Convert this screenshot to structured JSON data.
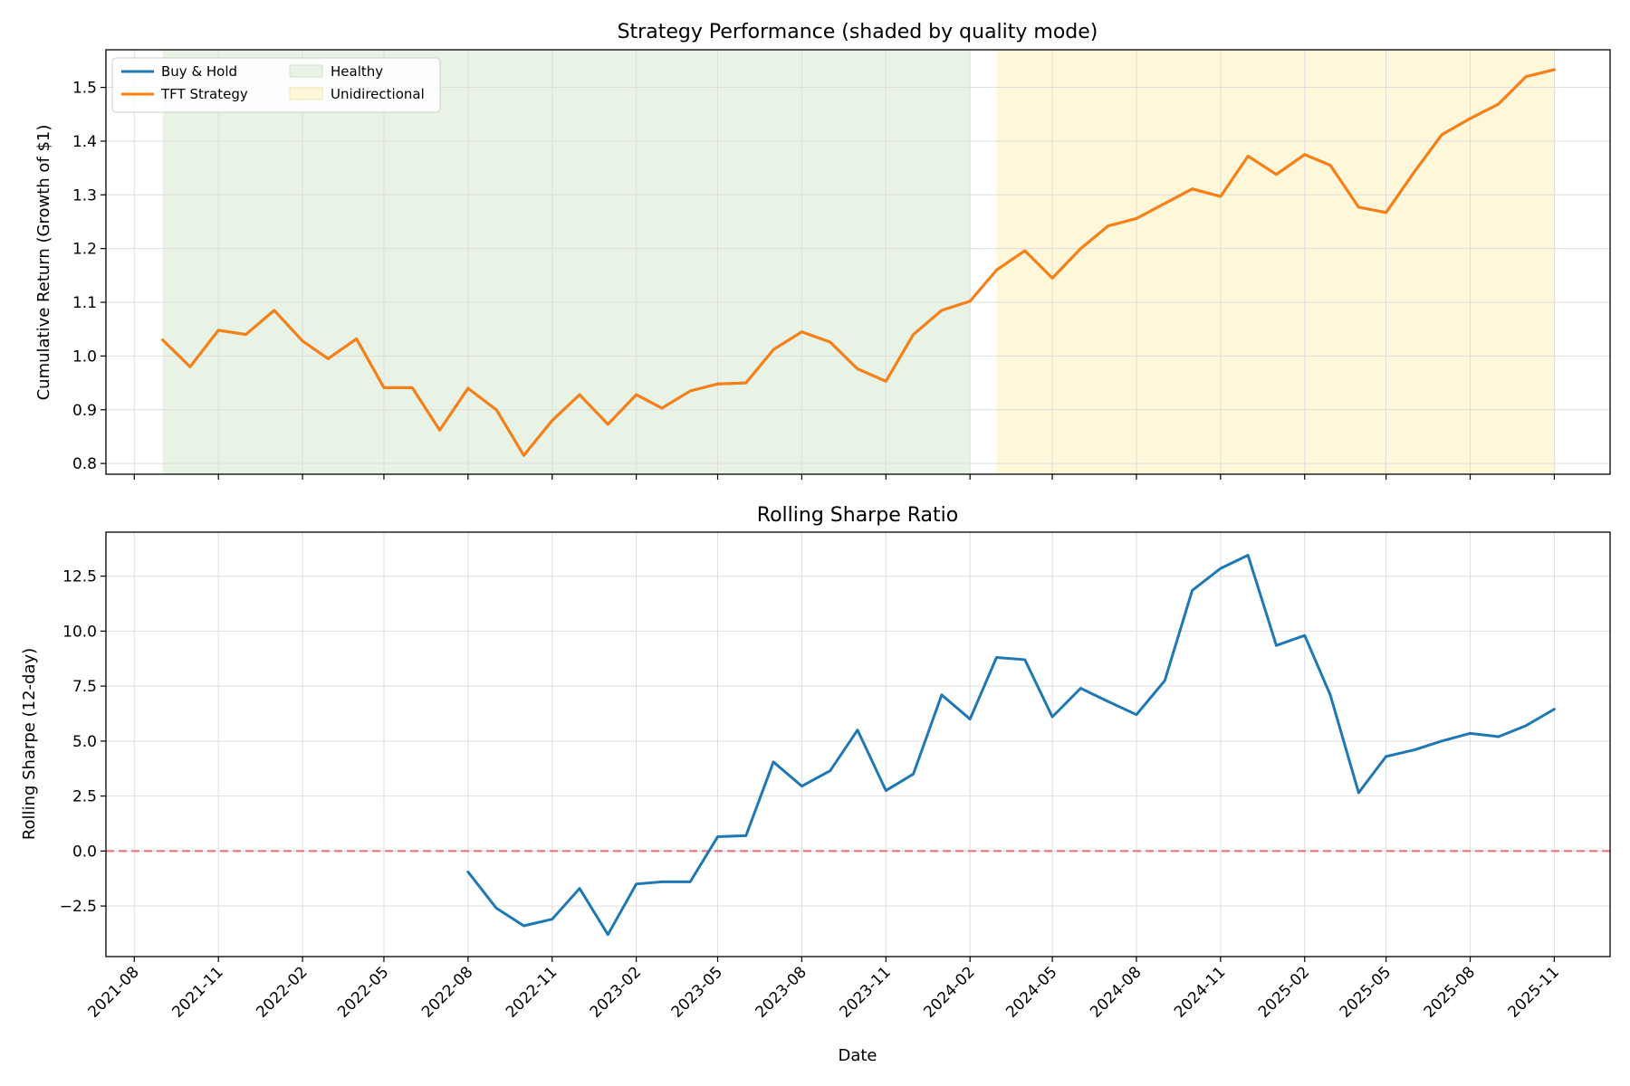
{
  "colors": {
    "buy_hold": "#1f77b4",
    "tft": "#ff7f0e",
    "healthy": "#e8f3e6",
    "unidirectional": "#fff7d9",
    "zero_line": "#f06b6b",
    "grid": "#dddddd"
  },
  "chart_data": [
    {
      "type": "line",
      "title": "Strategy Performance (shaded by quality mode)",
      "xlabel": "",
      "ylabel": "Cumulative Return (Growth of $1)",
      "grid": true,
      "legend_position": "top-left",
      "legend": [
        {
          "label": "Buy & Hold",
          "kind": "line",
          "color": "#1f77b4"
        },
        {
          "label": "TFT Strategy",
          "kind": "line",
          "color": "#ff7f0e"
        },
        {
          "label": "Healthy",
          "kind": "patch",
          "color": "#e8f3e6"
        },
        {
          "label": "Unidirectional",
          "kind": "patch",
          "color": "#fff7d9"
        }
      ],
      "xlim": [
        "2021-07-01",
        "2026-01-01"
      ],
      "ylim": [
        0.78,
        1.57
      ],
      "x_ticks": [
        "2021-08",
        "2021-11",
        "2022-02",
        "2022-05",
        "2022-08",
        "2022-11",
        "2023-02",
        "2023-05",
        "2023-08",
        "2023-11",
        "2024-02",
        "2024-05",
        "2024-08",
        "2024-11",
        "2025-02",
        "2025-05",
        "2025-08",
        "2025-11"
      ],
      "y_ticks": [
        "0.8",
        "0.9",
        "1.0",
        "1.1",
        "1.2",
        "1.3",
        "1.4",
        "1.5"
      ],
      "shaded_regions": [
        {
          "label": "Healthy",
          "start": "2021-09",
          "end": "2024-02"
        },
        {
          "label": "Unidirectional",
          "start": "2024-03",
          "end": "2025-11"
        }
      ],
      "series": [
        {
          "name": "Buy & Hold",
          "color": "#1f77b4",
          "x": [
            "2021-09",
            "2021-10",
            "2021-11",
            "2021-12",
            "2022-01",
            "2022-02",
            "2022-03",
            "2022-04",
            "2022-05",
            "2022-06",
            "2022-07",
            "2022-08",
            "2022-09",
            "2022-10",
            "2022-11",
            "2022-12",
            "2023-01",
            "2023-02",
            "2023-03",
            "2023-04",
            "2023-05",
            "2023-06",
            "2023-07",
            "2023-08",
            "2023-09",
            "2023-10",
            "2023-11",
            "2023-12",
            "2024-01",
            "2024-02",
            "2024-03",
            "2024-04",
            "2024-05",
            "2024-06",
            "2024-07",
            "2024-08",
            "2024-09",
            "2024-10",
            "2024-11",
            "2024-12",
            "2025-01",
            "2025-02",
            "2025-03",
            "2025-04",
            "2025-05",
            "2025-06",
            "2025-07",
            "2025-08",
            "2025-09",
            "2025-10",
            "2025-11"
          ],
          "values": [
            1.03,
            0.98,
            1.048,
            1.04,
            1.085,
            1.028,
            0.995,
            1.032,
            0.941,
            0.941,
            0.862,
            0.94,
            0.9,
            0.815,
            0.88,
            0.928,
            0.873,
            0.928,
            0.903,
            0.935,
            0.948,
            0.95,
            1.012,
            1.045,
            1.026,
            0.976,
            0.953,
            1.04,
            1.085,
            1.102,
            1.16,
            1.196,
            1.145,
            1.2,
            1.242,
            1.256,
            1.284,
            1.311,
            1.297,
            1.372,
            1.338,
            1.375,
            1.355,
            1.277,
            1.267,
            1.343,
            1.412,
            1.442,
            1.469,
            1.52,
            1.533
          ]
        },
        {
          "name": "TFT Strategy",
          "color": "#ff7f0e",
          "x": [
            "2021-09",
            "2021-10",
            "2021-11",
            "2021-12",
            "2022-01",
            "2022-02",
            "2022-03",
            "2022-04",
            "2022-05",
            "2022-06",
            "2022-07",
            "2022-08",
            "2022-09",
            "2022-10",
            "2022-11",
            "2022-12",
            "2023-01",
            "2023-02",
            "2023-03",
            "2023-04",
            "2023-05",
            "2023-06",
            "2023-07",
            "2023-08",
            "2023-09",
            "2023-10",
            "2023-11",
            "2023-12",
            "2024-01",
            "2024-02",
            "2024-03",
            "2024-04",
            "2024-05",
            "2024-06",
            "2024-07",
            "2024-08",
            "2024-09",
            "2024-10",
            "2024-11",
            "2024-12",
            "2025-01",
            "2025-02",
            "2025-03",
            "2025-04",
            "2025-05",
            "2025-06",
            "2025-07",
            "2025-08",
            "2025-09",
            "2025-10",
            "2025-11"
          ],
          "values": [
            1.03,
            0.98,
            1.048,
            1.04,
            1.085,
            1.028,
            0.995,
            1.032,
            0.941,
            0.941,
            0.862,
            0.94,
            0.9,
            0.815,
            0.88,
            0.928,
            0.873,
            0.928,
            0.903,
            0.935,
            0.948,
            0.95,
            1.012,
            1.045,
            1.026,
            0.976,
            0.953,
            1.04,
            1.085,
            1.102,
            1.16,
            1.196,
            1.145,
            1.2,
            1.242,
            1.256,
            1.284,
            1.311,
            1.297,
            1.372,
            1.338,
            1.375,
            1.355,
            1.277,
            1.267,
            1.343,
            1.412,
            1.442,
            1.469,
            1.52,
            1.533
          ]
        }
      ]
    },
    {
      "type": "line",
      "title": "Rolling Sharpe Ratio",
      "xlabel": "Date",
      "ylabel": "Rolling Sharpe (12-day)",
      "grid": true,
      "xlim": [
        "2021-07-01",
        "2026-01-01"
      ],
      "ylim": [
        -4.8,
        14.5
      ],
      "x_ticks": [
        "2021-08",
        "2021-11",
        "2022-02",
        "2022-05",
        "2022-08",
        "2022-11",
        "2023-02",
        "2023-05",
        "2023-08",
        "2023-11",
        "2024-02",
        "2024-05",
        "2024-08",
        "2024-11",
        "2025-02",
        "2025-05",
        "2025-08",
        "2025-11"
      ],
      "y_ticks": [
        "−2.5",
        "0.0",
        "2.5",
        "5.0",
        "7.5",
        "10.0",
        "12.5"
      ],
      "reference_line": {
        "y": 0,
        "style": "dashed",
        "color": "#f06b6b"
      },
      "series": [
        {
          "color": "#1f77b4",
          "x": [
            "2022-08",
            "2022-09",
            "2022-10",
            "2022-11",
            "2022-12",
            "2023-01",
            "2023-02",
            "2023-03",
            "2023-04",
            "2023-05",
            "2023-06",
            "2023-07",
            "2023-08",
            "2023-09",
            "2023-10",
            "2023-11",
            "2023-12",
            "2024-01",
            "2024-02",
            "2024-03",
            "2024-04",
            "2024-05",
            "2024-06",
            "2024-07",
            "2024-08",
            "2024-09",
            "2024-10",
            "2024-11",
            "2024-12",
            "2025-01",
            "2025-02",
            "2025-03",
            "2025-04",
            "2025-05",
            "2025-06",
            "2025-07",
            "2025-08",
            "2025-09",
            "2025-10",
            "2025-11"
          ],
          "values": [
            -0.95,
            -2.6,
            -3.4,
            -3.1,
            -1.7,
            -3.8,
            -1.5,
            -1.4,
            -1.4,
            0.65,
            0.7,
            4.05,
            2.95,
            3.65,
            5.5,
            2.75,
            3.5,
            7.1,
            6.0,
            8.8,
            8.7,
            6.1,
            7.4,
            6.8,
            6.2,
            7.75,
            11.85,
            12.85,
            13.45,
            9.35,
            9.8,
            7.1,
            2.65,
            4.3,
            4.6,
            5.0,
            5.35,
            5.2,
            5.7,
            6.45
          ]
        }
      ]
    }
  ]
}
